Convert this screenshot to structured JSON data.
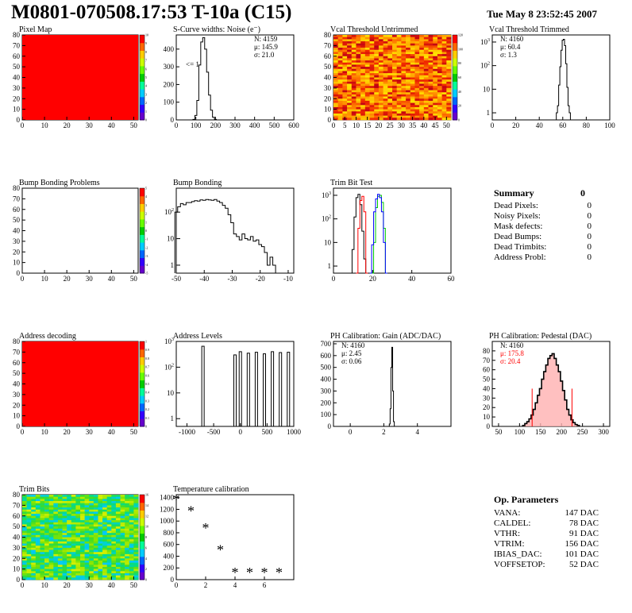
{
  "page": {
    "title": "M0801-070508.17:53 T-10a (C15)",
    "date": "Tue May  8 23:52:45 2007",
    "colors": {
      "red": "#ff0000",
      "green": "#00cc00",
      "blue": "#0000ff",
      "black": "#000000"
    }
  },
  "chart_data": [
    {
      "id": "pixel_map",
      "type": "heatmap",
      "title": "Pixel Map",
      "xlim": [
        0,
        52
      ],
      "ylim": [
        0,
        80
      ],
      "xticks": [
        "0",
        "10",
        "20",
        "30",
        "40",
        "50"
      ],
      "yticks": [
        "0",
        "10",
        "20",
        "30",
        "40",
        "50",
        "60",
        "70",
        "80"
      ],
      "fill": "uniform",
      "cell_color": "#ff0000",
      "colorbar_ticks": [
        "0",
        "1",
        "2",
        "3",
        "4",
        "5",
        "6",
        "7",
        "8",
        "9",
        "10"
      ]
    },
    {
      "id": "scurve_noise",
      "type": "line",
      "title": "S-Curve widths: Noise (e⁻)",
      "xlim": [
        0,
        600
      ],
      "ylim": [
        0,
        480
      ],
      "xticks": [
        "0",
        "100",
        "200",
        "300",
        "400",
        "500",
        "600"
      ],
      "yticks": [
        "0",
        "100",
        "200",
        "300",
        "400"
      ],
      "stats": [
        "N: 4159",
        "μ: 145.9",
        "σ: 21.0"
      ],
      "annotation": "<= 1",
      "series": [
        {
          "x": [
            80,
            90,
            100,
            110,
            120,
            130,
            140,
            150,
            160,
            170,
            180,
            190,
            200,
            210
          ],
          "values": [
            0,
            3,
            25,
            110,
            310,
            440,
            465,
            400,
            270,
            140,
            55,
            15,
            3,
            0
          ]
        }
      ]
    },
    {
      "id": "vcal_untrimmed",
      "type": "heatmap",
      "title": "Vcal Threshold Untrimmed",
      "xlim": [
        0,
        52
      ],
      "ylim": [
        0,
        80
      ],
      "xticks": [
        "0",
        "5",
        "10",
        "15",
        "20",
        "25",
        "30",
        "35",
        "40",
        "45",
        "50"
      ],
      "yticks": [
        "0",
        "10",
        "20",
        "30",
        "40",
        "50",
        "60",
        "70",
        "80"
      ],
      "fill": "noise",
      "palette": "warm",
      "colorbar_ticks": [
        "0",
        "20",
        "40",
        "60",
        "80",
        "100",
        "120"
      ]
    },
    {
      "id": "vcal_trimmed",
      "type": "line",
      "title": "Vcal Threshold Trimmed",
      "xlim": [
        0,
        100
      ],
      "ylim": [
        0.5,
        2000
      ],
      "yscale": "log",
      "xticks": [
        "0",
        "20",
        "40",
        "60",
        "80",
        "100"
      ],
      "stats": [
        "N: 4160",
        "μ: 60.4",
        "σ:  1.3"
      ],
      "series": [
        {
          "x": [
            54,
            55,
            56,
            57,
            58,
            59,
            60,
            61,
            62,
            63,
            64,
            65,
            66,
            67
          ],
          "values": [
            0.5,
            1,
            2,
            15,
            90,
            450,
            1200,
            1300,
            700,
            120,
            12,
            2,
            1,
            0.5
          ]
        }
      ]
    },
    {
      "id": "bump_problems",
      "type": "heatmap",
      "title": "Bump Bonding Problems",
      "xlim": [
        0,
        52
      ],
      "ylim": [
        0,
        80
      ],
      "xticks": [
        "0",
        "10",
        "20",
        "30",
        "40",
        "50"
      ],
      "yticks": [
        "0",
        "10",
        "20",
        "30",
        "40",
        "50",
        "60",
        "70",
        "80"
      ],
      "fill": "empty",
      "colorbar_ticks": [
        "-5",
        "-4",
        "-3",
        "-2",
        "-1",
        "0",
        "1",
        "2",
        "3",
        "4",
        "5"
      ]
    },
    {
      "id": "bump_bonding",
      "type": "line",
      "title": "Bump Bonding",
      "xlim": [
        -50,
        -8
      ],
      "ylim": [
        0.5,
        800
      ],
      "yscale": "log",
      "xticks": [
        "-50",
        "-40",
        "-30",
        "-20",
        "-10"
      ],
      "series": [
        {
          "x": [
            -50,
            -49,
            -48,
            -47,
            -46,
            -45,
            -44,
            -43,
            -42,
            -41,
            -40,
            -39,
            -38,
            -37,
            -36,
            -35,
            -34,
            -33,
            -32,
            -31,
            -30,
            -29,
            -28,
            -27,
            -26,
            -25,
            -24,
            -23,
            -22,
            -21,
            -20,
            -19,
            -18,
            -17,
            -16,
            -15,
            -14
          ],
          "values": [
            100,
            160,
            210,
            190,
            230,
            230,
            250,
            270,
            260,
            290,
            280,
            300,
            290,
            280,
            300,
            260,
            230,
            180,
            140,
            80,
            40,
            15,
            12,
            9,
            15,
            10,
            9,
            12,
            8,
            9,
            6,
            5,
            3,
            1,
            2,
            1,
            0.5
          ]
        }
      ]
    },
    {
      "id": "trim_bit_test",
      "type": "line",
      "title": "Trim Bit Test",
      "xlim": [
        0,
        60
      ],
      "ylim": [
        0.5,
        2000
      ],
      "yscale": "log",
      "xticks": [
        "0",
        "20",
        "40",
        "60"
      ],
      "series": [
        {
          "color": "#000000",
          "x": [
            9,
            10,
            11,
            12,
            13,
            14,
            15,
            16,
            17
          ],
          "values": [
            0.5,
            5,
            120,
            800,
            1100,
            400,
            30,
            2,
            0.5
          ]
        },
        {
          "color": "#ff0000",
          "x": [
            12,
            13,
            14,
            15,
            16,
            17
          ],
          "values": [
            0.5,
            40,
            600,
            900,
            200,
            0.5
          ]
        },
        {
          "color": "#00cc00",
          "x": [
            20,
            21,
            22,
            23,
            24,
            25,
            26,
            27
          ],
          "values": [
            0.5,
            10,
            300,
            900,
            1000,
            500,
            40,
            0.5
          ]
        },
        {
          "color": "#0000ff",
          "x": [
            19,
            20,
            21,
            22,
            23,
            24,
            25,
            26,
            27
          ],
          "values": [
            0.5,
            8,
            200,
            700,
            1100,
            800,
            200,
            10,
            0.5
          ]
        }
      ]
    },
    {
      "id": "address_decoding",
      "type": "heatmap",
      "title": "Address decoding",
      "xlim": [
        0,
        52
      ],
      "ylim": [
        0,
        80
      ],
      "xticks": [
        "0",
        "10",
        "20",
        "30",
        "40",
        "50"
      ],
      "yticks": [
        "0",
        "10",
        "20",
        "30",
        "40",
        "50",
        "60",
        "70",
        "80"
      ],
      "fill": "uniform",
      "cell_color": "#ff0000",
      "colorbar_ticks": [
        "0",
        "0.1",
        "0.2",
        "0.3",
        "0.4",
        "0.5",
        "0.6",
        "0.7",
        "0.8",
        "0.9",
        "1"
      ]
    },
    {
      "id": "address_levels",
      "type": "bar",
      "title": "Address Levels",
      "xlim": [
        -1200,
        1000
      ],
      "ylim": [
        0.5,
        1000
      ],
      "yscale": "log",
      "xticks": [
        "-1000",
        "-500",
        "0",
        "500",
        "1000"
      ],
      "peaks": [
        {
          "x": -700,
          "value": 650
        },
        {
          "x": -100,
          "value": 300
        },
        {
          "x": 0,
          "value": 400
        },
        {
          "x": 150,
          "value": 350
        },
        {
          "x": 300,
          "value": 380
        },
        {
          "x": 450,
          "value": 330
        },
        {
          "x": 600,
          "value": 400
        },
        {
          "x": 750,
          "value": 370
        },
        {
          "x": 900,
          "value": 380
        }
      ]
    },
    {
      "id": "ph_gain",
      "type": "line",
      "title": "PH Calibration: Gain (ADC/DAC)",
      "xlim": [
        -1,
        6
      ],
      "ylim": [
        0,
        720
      ],
      "xticks": [
        "0",
        "2",
        "4"
      ],
      "yticks": [
        "0",
        "100",
        "200",
        "300",
        "400",
        "500",
        "600",
        "700"
      ],
      "stats": [
        "N: 4160",
        "μ: 2.45",
        "σ: 0.06"
      ],
      "series": [
        {
          "x": [
            2.3,
            2.35,
            2.4,
            2.45,
            2.5,
            2.55,
            2.6,
            2.65
          ],
          "values": [
            0,
            20,
            150,
            500,
            670,
            300,
            40,
            0
          ]
        }
      ]
    },
    {
      "id": "ph_pedestal",
      "type": "line",
      "title": "PH Calibration: Pedestal (DAC)",
      "xlim": [
        35,
        315
      ],
      "ylim": [
        0,
        90
      ],
      "xticks": [
        "50",
        "100",
        "150",
        "200",
        "250",
        "300"
      ],
      "yticks": [
        "0",
        "10",
        "20",
        "30",
        "40",
        "50",
        "60",
        "70",
        "80"
      ],
      "stats": [
        "N: 4160",
        "μ: 175.8",
        "σ: 20.4"
      ],
      "stats_colors": [
        "#000000",
        "#ff0000",
        "#ff0000"
      ],
      "cut_lines": [
        130,
        225
      ],
      "series": [
        {
          "x": [
            110,
            115,
            120,
            125,
            130,
            135,
            140,
            145,
            150,
            155,
            160,
            165,
            170,
            175,
            180,
            185,
            190,
            195,
            200,
            205,
            210,
            215,
            220,
            225,
            230,
            235,
            240
          ],
          "values": [
            1,
            3,
            5,
            8,
            12,
            18,
            25,
            33,
            40,
            50,
            58,
            65,
            72,
            75,
            77,
            72,
            65,
            58,
            48,
            38,
            28,
            18,
            12,
            7,
            4,
            2,
            1
          ]
        }
      ]
    },
    {
      "id": "trim_bits",
      "type": "heatmap",
      "title": "Trim Bits",
      "xlim": [
        0,
        52
      ],
      "ylim": [
        0,
        80
      ],
      "xticks": [
        "0",
        "10",
        "20",
        "30",
        "40",
        "50"
      ],
      "yticks": [
        "0",
        "10",
        "20",
        "30",
        "40",
        "50",
        "60",
        "70",
        "80"
      ],
      "fill": "noise",
      "palette": "cool",
      "colorbar_ticks": [
        "0",
        "2",
        "4",
        "6",
        "8",
        "10",
        "12",
        "14",
        "16"
      ]
    },
    {
      "id": "temp_calibration",
      "type": "scatter",
      "title": "Temperature calibration",
      "xlim": [
        0,
        8
      ],
      "ylim": [
        0,
        1450
      ],
      "xticks": [
        "0",
        "2",
        "4",
        "6"
      ],
      "yticks": [
        "0",
        "200",
        "400",
        "600",
        "800",
        "1000",
        "1200",
        "1400"
      ],
      "series": [
        {
          "x": [
            0,
            1,
            2,
            3,
            4,
            5,
            6,
            7
          ],
          "values": [
            1370,
            1170,
            880,
            510,
            120,
            120,
            120,
            120
          ]
        }
      ]
    }
  ],
  "summary": {
    "title": "Summary",
    "total": "0",
    "rows": [
      {
        "label": "Dead Pixels:",
        "value": "0"
      },
      {
        "label": "Noisy Pixels:",
        "value": "0"
      },
      {
        "label": "Mask defects:",
        "value": "0"
      },
      {
        "label": "Dead Bumps:",
        "value": "0"
      },
      {
        "label": "Dead Trimbits:",
        "value": "0"
      },
      {
        "label": "Address Probl:",
        "value": "0"
      }
    ]
  },
  "op_params": {
    "title": "Op. Parameters",
    "rows": [
      {
        "label": "VANA:",
        "value": "147 DAC"
      },
      {
        "label": "CALDEL:",
        "value": "78 DAC"
      },
      {
        "label": "VTHR:",
        "value": "91 DAC"
      },
      {
        "label": "VTRIM:",
        "value": "156 DAC"
      },
      {
        "label": "IBIAS_DAC:",
        "value": "101 DAC"
      },
      {
        "label": "VOFFSETOP:",
        "value": "52 DAC"
      }
    ]
  }
}
